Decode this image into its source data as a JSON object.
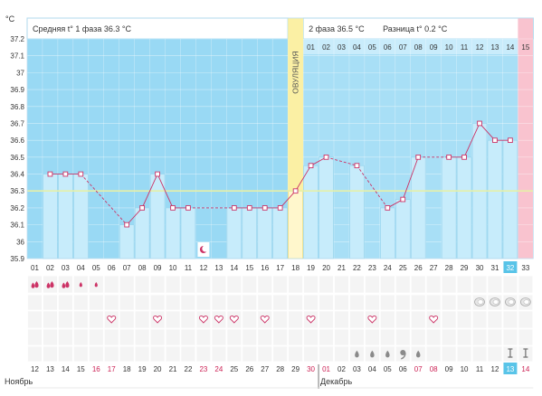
{
  "chart_data": {
    "type": "bar",
    "unit_label": "°C",
    "phase1": {
      "label": "Средняя t° 1 фаза",
      "value": "36.3 °C"
    },
    "phase2": {
      "label": "2 фаза",
      "value": "36.5 °C"
    },
    "difference": {
      "label": "Разница t°",
      "value": "0.2 °C"
    },
    "ovulation_label": "ОВУЛЯЦИЯ",
    "ovulation_day": 18,
    "ylim": [
      35.9,
      37.2
    ],
    "yticks": [
      "37.2",
      "37.1",
      "37",
      "36.9",
      "36.8",
      "36.7",
      "36.6",
      "36.5",
      "36.4",
      "36.3",
      "36.2",
      "36.1",
      "36",
      "35.9"
    ],
    "coverline": 36.3,
    "cycle_days": [
      "01",
      "02",
      "03",
      "04",
      "05",
      "06",
      "07",
      "08",
      "09",
      "10",
      "11",
      "12",
      "13",
      "14",
      "15",
      "16",
      "17",
      "18",
      "19",
      "20",
      "21",
      "22",
      "23",
      "24",
      "25",
      "26",
      "27",
      "28",
      "29",
      "30",
      "31",
      "32",
      "33"
    ],
    "current_cycle_day": "32",
    "phase2_day_labels": [
      "01",
      "02",
      "03",
      "04",
      "05",
      "06",
      "07",
      "08",
      "09",
      "10",
      "11",
      "12",
      "13",
      "14",
      "15"
    ],
    "values": [
      null,
      36.4,
      36.4,
      36.4,
      null,
      null,
      36.1,
      36.2,
      36.4,
      36.2,
      36.2,
      null,
      null,
      36.2,
      36.2,
      36.2,
      36.2,
      36.3,
      36.45,
      36.5,
      null,
      36.45,
      null,
      36.2,
      36.25,
      36.5,
      null,
      36.5,
      36.5,
      36.7,
      36.6,
      36.6,
      null
    ],
    "dates": [
      "12",
      "13",
      "14",
      "15",
      "16",
      "17",
      "18",
      "19",
      "20",
      "21",
      "22",
      "23",
      "24",
      "25",
      "26",
      "27",
      "28",
      "29",
      "30",
      "01",
      "02",
      "03",
      "04",
      "05",
      "06",
      "07",
      "08",
      "09",
      "10",
      "11",
      "12",
      "13",
      "14"
    ],
    "weekend_dates_idx": [
      4,
      5,
      11,
      12,
      18,
      19,
      25,
      26,
      32
    ],
    "today_date_idx": 31,
    "month_labels": [
      {
        "text": "Ноябрь",
        "start_idx": 0
      },
      {
        "text": "Декабрь",
        "start_idx": 19
      }
    ],
    "markers": {
      "bleeding": {
        "heavy": [
          0,
          1,
          2
        ],
        "light": [
          3,
          4
        ]
      },
      "mucus": [
        29,
        30,
        31,
        32
      ],
      "sex": [
        5,
        8,
        11,
        12,
        13,
        15,
        18,
        22,
        26
      ],
      "drops": [
        21,
        22,
        23,
        25
      ],
      "comma": [
        24
      ],
      "tests": [
        31,
        32
      ],
      "moon": [
        11
      ]
    },
    "colors": {
      "phase1_bg": "#99d9f4",
      "phase2_bg": "#a8dff6",
      "bar": "#c7ecfb",
      "bar_border": "#8ed0ec",
      "line": "#cc3366",
      "ovulation": "#fbf0a4",
      "coverline": "#e6f0a8",
      "current_day": "#f9c3cf",
      "weekend": "#cc2255",
      "label": "#555555"
    }
  }
}
